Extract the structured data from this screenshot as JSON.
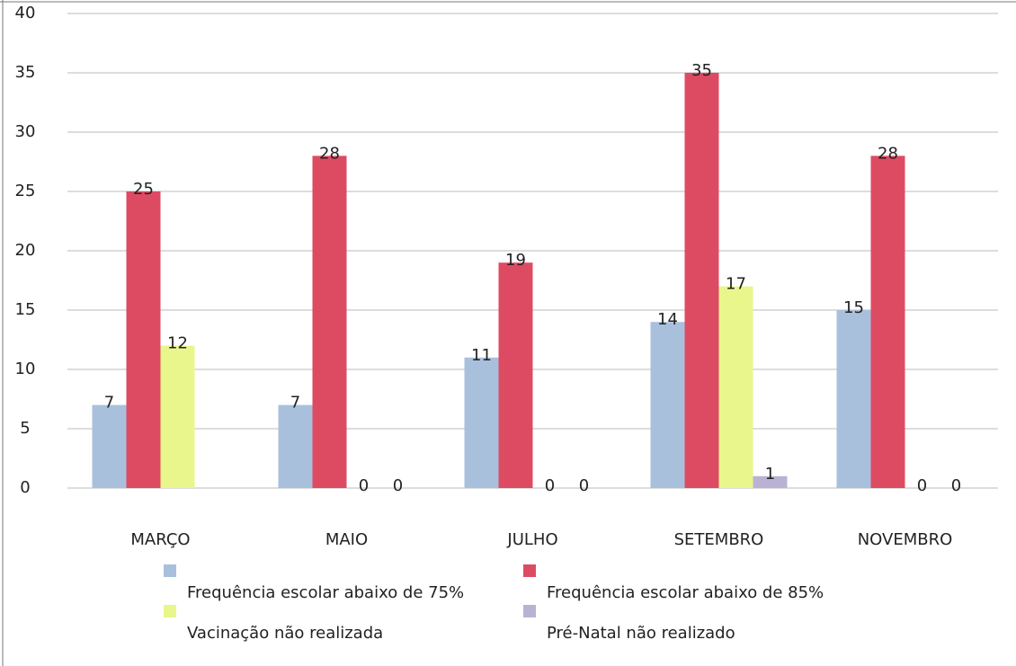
{
  "chart_data": {
    "type": "bar",
    "categories": [
      "MARÇO",
      "MAIO",
      "JULHO",
      "SETEMBRO",
      "NOVEMBRO"
    ],
    "series": [
      {
        "name": "Frequência escolar abaixo de 75%",
        "color": "#a9c0dd",
        "values": [
          7,
          7,
          11,
          14,
          15
        ]
      },
      {
        "name": "Frequência escolar abaixo de 85%",
        "color": "#dd4b63",
        "values": [
          25,
          28,
          19,
          35,
          28
        ]
      },
      {
        "name": "Vacinação não realizada",
        "color": "#e9f68c",
        "values": [
          12,
          0,
          0,
          17,
          0
        ]
      },
      {
        "name": "Pré-Natal não realizado",
        "color": "#bab2d2",
        "values": [
          null,
          0,
          0,
          1,
          0
        ]
      }
    ],
    "ylim": [
      0,
      40
    ],
    "yticks": [
      0,
      5,
      10,
      15,
      20,
      25,
      30,
      35,
      40
    ],
    "grid": true
  }
}
